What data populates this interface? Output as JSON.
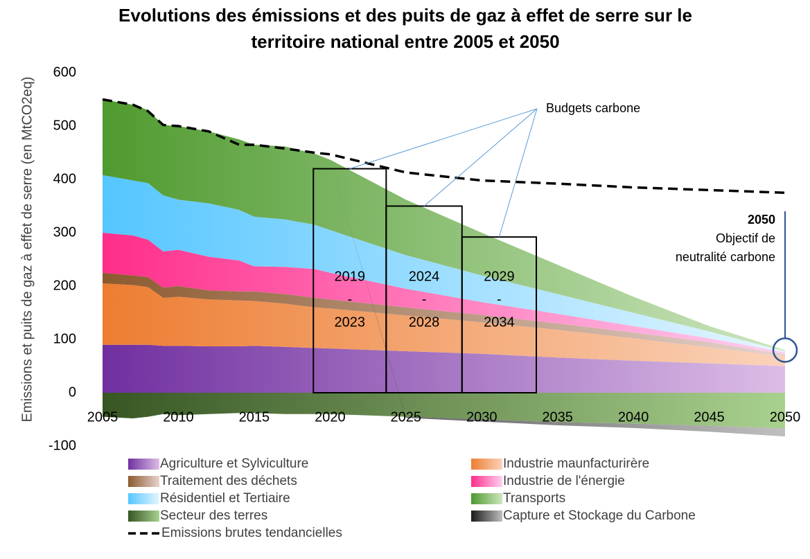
{
  "chart_data": {
    "type": "stacked_area",
    "title": [
      "Evolutions des émissions et des puits  de gaz à effet de serre sur le",
      "territoire national entre 2005 et 2050"
    ],
    "y_label": "Emissions et puits de gaz à effet de serre (en MtCO2eq)",
    "x": [
      2005,
      2007,
      2008,
      2009,
      2010,
      2012,
      2014,
      2015,
      2017,
      2019,
      2020,
      2025,
      2030,
      2035,
      2040,
      2045,
      2050
    ],
    "series": [
      {
        "name": "Agriculture et Sylviculture",
        "color": [
          "#7030a0",
          "#dcbde6"
        ],
        "values": [
          90,
          90,
          90,
          88,
          88,
          87,
          87,
          88,
          86,
          84,
          83,
          78,
          73,
          66,
          60,
          55,
          50
        ]
      },
      {
        "name": "Industrie maunfacturirère",
        "color": [
          "#ed7d31",
          "#fad3bb"
        ],
        "values": [
          115,
          112,
          108,
          90,
          92,
          88,
          86,
          84,
          81,
          76,
          75,
          67,
          59,
          52,
          42,
          30,
          18
        ]
      },
      {
        "name": "Traitement des déchets",
        "color": [
          "#8c5a2e",
          "#e6d3cf"
        ],
        "values": [
          20,
          18,
          19,
          19,
          20,
          17,
          17,
          18,
          18,
          18,
          17,
          15,
          14,
          12,
          11,
          10,
          4
        ]
      },
      {
        "name": "Industrie de l'énergie",
        "color": [
          "#ff2d8a",
          "#ffd0f2"
        ],
        "values": [
          75,
          75,
          70,
          68,
          68,
          63,
          58,
          47,
          51,
          54,
          50,
          35,
          24,
          18,
          12,
          7,
          4
        ]
      },
      {
        "name": "Résidentiel et Tertiaire",
        "color": [
          "#55c6ff",
          "#e6f6ff"
        ],
        "values": [
          108,
          103,
          106,
          105,
          94,
          100,
          95,
          93,
          89,
          83,
          80,
          63,
          50,
          37,
          25,
          13,
          2
        ]
      },
      {
        "name": "Transports",
        "color": [
          "#4f9a2f",
          "#cde6bf"
        ],
        "values": [
          142,
          142,
          137,
          132,
          138,
          135,
          132,
          135,
          137,
          133,
          132,
          104,
          80,
          55,
          30,
          10,
          2
        ]
      },
      {
        "name": "Secteur des terres",
        "color": [
          "#375623",
          "#a9d18e"
        ],
        "values": [
          -45,
          -48,
          -45,
          -40,
          -42,
          -40,
          -38,
          -38,
          -40,
          -40,
          -40,
          -45,
          -50,
          -55,
          -58,
          -62,
          -67
        ]
      },
      {
        "name": "Capture et Stockage du Carbone",
        "color": [
          "#1a1a1a",
          "#bfbfbf"
        ],
        "values": [
          0,
          0,
          0,
          0,
          0,
          0,
          0,
          0,
          0,
          0,
          0,
          -2,
          -4,
          -6,
          -8,
          -11,
          -15
        ]
      }
    ],
    "trend": {
      "name": "Emissions brutes tendancielles",
      "color": "#000000",
      "values": [
        550,
        540,
        528,
        502,
        500,
        490,
        465,
        465,
        458,
        450,
        447,
        413,
        398,
        392,
        385,
        380,
        375
      ]
    },
    "budgets_label": "Budgets carbone",
    "budgets": [
      {
        "label": [
          "2019",
          "-",
          "2023"
        ],
        "xrange": [
          2018.9,
          2023.7
        ],
        "value": 420
      },
      {
        "label": [
          "2024",
          "-",
          "2028"
        ],
        "xrange": [
          2023.7,
          2028.7
        ],
        "value": 350
      },
      {
        "label": [
          "2029",
          "-",
          "2034"
        ],
        "xrange": [
          2028.7,
          2033.6
        ],
        "value": 292
      }
    ],
    "target": {
      "year": "2050",
      "text": [
        "Objectif de",
        "neutralité carbone"
      ],
      "x": 2050,
      "value": 80
    },
    "xlim": [
      2005,
      2050
    ],
    "xticks": [
      2005,
      2010,
      2015,
      2020,
      2025,
      2030,
      2035,
      2040,
      2045,
      2050
    ],
    "ylim": [
      -100,
      600
    ],
    "yticks": [
      -100,
      0,
      100,
      200,
      300,
      400,
      500,
      600
    ]
  }
}
